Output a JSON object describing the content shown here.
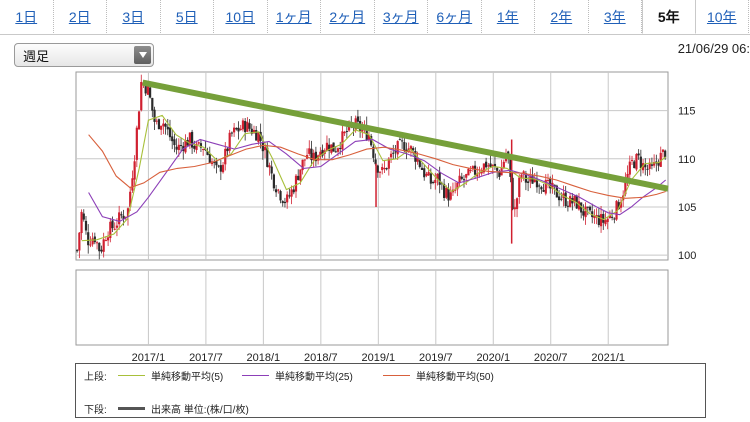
{
  "tabs": [
    {
      "label": "1日",
      "active": false
    },
    {
      "label": "2日",
      "active": false
    },
    {
      "label": "3日",
      "active": false
    },
    {
      "label": "5日",
      "active": false
    },
    {
      "label": "10日",
      "active": false
    },
    {
      "label": "1ヶ月",
      "active": false
    },
    {
      "label": "2ヶ月",
      "active": false
    },
    {
      "label": "3ヶ月",
      "active": false
    },
    {
      "label": "6ヶ月",
      "active": false
    },
    {
      "label": "1年",
      "active": false
    },
    {
      "label": "2年",
      "active": false
    },
    {
      "label": "3年",
      "active": false
    },
    {
      "label": "5年",
      "active": true
    },
    {
      "label": "10年",
      "active": false
    }
  ],
  "period_select": {
    "value": "週足"
  },
  "timestamp": "21/06/29 06:",
  "legend": {
    "upper_label": "上段:",
    "lower_label": "下段:",
    "ma5": "単純移動平均(5)",
    "ma25": "単純移動平均(25)",
    "ma50": "単純移動平均(50)",
    "volume": "出来高 単位:(株/口/枚)"
  },
  "colors": {
    "tab_link": "#2060b8",
    "ma5": "#a8c03a",
    "ma25": "#8c3fb8",
    "ma50": "#d8603c",
    "trendline": "#76a03a",
    "candle_up": "#d02030",
    "candle_down": "#2a2a2a",
    "grid": "#c8c8c8"
  },
  "chart_data": {
    "type": "candlestick",
    "interval": "weekly",
    "ylim": [
      99.5,
      119
    ],
    "y_ticks": [
      100,
      105,
      110,
      115
    ],
    "x_ticks": [
      "2017/1",
      "2017/7",
      "2018/1",
      "2018/7",
      "2019/1",
      "2019/7",
      "2020/1",
      "2020/7",
      "2021/1"
    ],
    "x_tick_positions": [
      2017.0,
      2017.5,
      2018.0,
      2018.5,
      2019.0,
      2019.5,
      2020.0,
      2020.5,
      2021.0
    ],
    "x_range": [
      2016.37,
      2021.52
    ],
    "price_path": [
      [
        2016.38,
        100.5
      ],
      [
        2016.42,
        104.5
      ],
      [
        2016.47,
        101.5
      ],
      [
        2016.53,
        102.0
      ],
      [
        2016.58,
        100.4
      ],
      [
        2016.64,
        102.5
      ],
      [
        2016.7,
        103.0
      ],
      [
        2016.76,
        104.0
      ],
      [
        2016.82,
        104.5
      ],
      [
        2016.88,
        110.5
      ],
      [
        2016.94,
        118.2
      ],
      [
        2017.0,
        117.0
      ],
      [
        2017.06,
        113.5
      ],
      [
        2017.12,
        114.0
      ],
      [
        2017.18,
        112.5
      ],
      [
        2017.24,
        111.0
      ],
      [
        2017.3,
        111.5
      ],
      [
        2017.36,
        112.0
      ],
      [
        2017.42,
        111.0
      ],
      [
        2017.48,
        111.3
      ],
      [
        2017.54,
        110.0
      ],
      [
        2017.6,
        108.5
      ],
      [
        2017.66,
        110.0
      ],
      [
        2017.72,
        112.5
      ],
      [
        2017.78,
        113.0
      ],
      [
        2017.84,
        113.5
      ],
      [
        2017.9,
        113.0
      ],
      [
        2017.96,
        112.5
      ],
      [
        2018.02,
        110.5
      ],
      [
        2018.08,
        108.0
      ],
      [
        2018.14,
        106.5
      ],
      [
        2018.2,
        105.5
      ],
      [
        2018.26,
        107.0
      ],
      [
        2018.32,
        109.0
      ],
      [
        2018.38,
        110.5
      ],
      [
        2018.44,
        110.0
      ],
      [
        2018.5,
        111.0
      ],
      [
        2018.56,
        111.5
      ],
      [
        2018.62,
        111.0
      ],
      [
        2018.68,
        112.0
      ],
      [
        2018.74,
        113.0
      ],
      [
        2018.8,
        113.5
      ],
      [
        2018.86,
        113.0
      ],
      [
        2018.92,
        112.5
      ],
      [
        2018.98,
        109.5
      ],
      [
        2019.04,
        108.5
      ],
      [
        2019.1,
        110.0
      ],
      [
        2019.16,
        111.0
      ],
      [
        2019.22,
        111.5
      ],
      [
        2019.28,
        111.0
      ],
      [
        2019.34,
        110.0
      ],
      [
        2019.4,
        108.5
      ],
      [
        2019.46,
        107.5
      ],
      [
        2019.52,
        108.0
      ],
      [
        2019.58,
        106.5
      ],
      [
        2019.64,
        106.0
      ],
      [
        2019.7,
        107.5
      ],
      [
        2019.76,
        108.0
      ],
      [
        2019.82,
        108.5
      ],
      [
        2019.88,
        109.0
      ],
      [
        2019.94,
        109.5
      ],
      [
        2020.0,
        109.0
      ],
      [
        2020.06,
        108.5
      ],
      [
        2020.12,
        111.0
      ],
      [
        2020.18,
        104.0
      ],
      [
        2020.24,
        108.5
      ],
      [
        2020.3,
        107.5
      ],
      [
        2020.36,
        108.0
      ],
      [
        2020.42,
        107.5
      ],
      [
        2020.48,
        107.0
      ],
      [
        2020.54,
        106.5
      ],
      [
        2020.6,
        106.0
      ],
      [
        2020.66,
        105.5
      ],
      [
        2020.72,
        105.5
      ],
      [
        2020.78,
        104.5
      ],
      [
        2020.84,
        104.0
      ],
      [
        2020.9,
        103.8
      ],
      [
        2020.96,
        103.5
      ],
      [
        2021.02,
        104.0
      ],
      [
        2021.08,
        105.0
      ],
      [
        2021.14,
        107.0
      ],
      [
        2021.2,
        109.5
      ],
      [
        2021.26,
        110.0
      ],
      [
        2021.32,
        109.0
      ],
      [
        2021.38,
        108.8
      ],
      [
        2021.44,
        110.0
      ],
      [
        2021.5,
        110.8
      ]
    ],
    "spikes": [
      {
        "x": 2018.98,
        "low": 105.0
      },
      {
        "x": 2020.16,
        "high": 112.0,
        "low": 101.2
      }
    ],
    "series": [
      {
        "name": "単純移動平均(5)",
        "values": [
          [
            2016.42,
            101.5
          ],
          [
            2016.55,
            101.6
          ],
          [
            2016.7,
            102.2
          ],
          [
            2016.82,
            103.8
          ],
          [
            2016.92,
            109.0
          ],
          [
            2017.0,
            114.0
          ],
          [
            2017.12,
            114.5
          ],
          [
            2017.24,
            112.5
          ],
          [
            2017.36,
            111.6
          ],
          [
            2017.48,
            111.2
          ],
          [
            2017.6,
            109.8
          ],
          [
            2017.72,
            110.5
          ],
          [
            2017.84,
            112.6
          ],
          [
            2017.96,
            112.8
          ],
          [
            2018.08,
            110.0
          ],
          [
            2018.2,
            106.8
          ],
          [
            2018.32,
            107.5
          ],
          [
            2018.44,
            109.8
          ],
          [
            2018.56,
            110.9
          ],
          [
            2018.68,
            111.5
          ],
          [
            2018.8,
            113.0
          ],
          [
            2018.92,
            112.5
          ],
          [
            2019.04,
            109.8
          ],
          [
            2019.16,
            110.0
          ],
          [
            2019.28,
            111.0
          ],
          [
            2019.4,
            109.4
          ],
          [
            2019.52,
            107.8
          ],
          [
            2019.64,
            106.6
          ],
          [
            2019.76,
            107.5
          ],
          [
            2019.88,
            108.6
          ],
          [
            2020.0,
            109.2
          ],
          [
            2020.12,
            109.0
          ],
          [
            2020.24,
            108.0
          ],
          [
            2020.36,
            107.9
          ],
          [
            2020.48,
            107.3
          ],
          [
            2020.6,
            106.2
          ],
          [
            2020.72,
            105.5
          ],
          [
            2020.84,
            104.3
          ],
          [
            2020.96,
            103.7
          ],
          [
            2021.08,
            104.6
          ],
          [
            2021.2,
            107.8
          ],
          [
            2021.32,
            109.5
          ],
          [
            2021.44,
            109.6
          ],
          [
            2021.5,
            110.2
          ]
        ]
      },
      {
        "name": "単純移動平均(25)",
        "values": [
          [
            2016.48,
            106.5
          ],
          [
            2016.6,
            104.0
          ],
          [
            2016.75,
            103.5
          ],
          [
            2016.9,
            104.5
          ],
          [
            2017.0,
            106.0
          ],
          [
            2017.15,
            108.5
          ],
          [
            2017.3,
            111.0
          ],
          [
            2017.45,
            112.0
          ],
          [
            2017.6,
            111.5
          ],
          [
            2017.75,
            111.0
          ],
          [
            2017.9,
            111.5
          ],
          [
            2018.05,
            111.8
          ],
          [
            2018.2,
            110.5
          ],
          [
            2018.35,
            109.0
          ],
          [
            2018.5,
            109.2
          ],
          [
            2018.65,
            110.5
          ],
          [
            2018.8,
            111.8
          ],
          [
            2018.95,
            112.0
          ],
          [
            2019.1,
            111.0
          ],
          [
            2019.25,
            110.5
          ],
          [
            2019.4,
            109.8
          ],
          [
            2019.55,
            108.5
          ],
          [
            2019.7,
            107.5
          ],
          [
            2019.85,
            108.0
          ],
          [
            2020.0,
            108.6
          ],
          [
            2020.15,
            108.8
          ],
          [
            2020.3,
            108.3
          ],
          [
            2020.45,
            107.6
          ],
          [
            2020.6,
            106.8
          ],
          [
            2020.75,
            106.0
          ],
          [
            2020.9,
            105.0
          ],
          [
            2021.0,
            104.4
          ],
          [
            2021.1,
            104.2
          ],
          [
            2021.2,
            105.0
          ],
          [
            2021.3,
            106.0
          ],
          [
            2021.42,
            107.0
          ],
          [
            2021.5,
            107.8
          ]
        ]
      },
      {
        "name": "単純移動平均(50)",
        "values": [
          [
            2016.48,
            112.5
          ],
          [
            2016.6,
            110.8
          ],
          [
            2016.72,
            108.2
          ],
          [
            2016.84,
            107.0
          ],
          [
            2016.96,
            107.5
          ],
          [
            2017.1,
            108.6
          ],
          [
            2017.25,
            109.0
          ],
          [
            2017.4,
            109.2
          ],
          [
            2017.55,
            109.6
          ],
          [
            2017.7,
            110.3
          ],
          [
            2017.85,
            111.0
          ],
          [
            2018.0,
            111.4
          ],
          [
            2018.15,
            111.2
          ],
          [
            2018.3,
            110.5
          ],
          [
            2018.45,
            109.9
          ],
          [
            2018.6,
            109.9
          ],
          [
            2018.75,
            110.4
          ],
          [
            2018.9,
            111.0
          ],
          [
            2019.05,
            111.2
          ],
          [
            2019.2,
            110.9
          ],
          [
            2019.35,
            110.5
          ],
          [
            2019.5,
            110.0
          ],
          [
            2019.65,
            109.4
          ],
          [
            2019.8,
            109.0
          ],
          [
            2019.95,
            108.7
          ],
          [
            2020.1,
            108.6
          ],
          [
            2020.25,
            108.5
          ],
          [
            2020.4,
            108.2
          ],
          [
            2020.55,
            107.8
          ],
          [
            2020.7,
            107.2
          ],
          [
            2020.85,
            106.6
          ],
          [
            2021.0,
            106.2
          ],
          [
            2021.15,
            105.9
          ],
          [
            2021.3,
            106.0
          ],
          [
            2021.42,
            106.3
          ],
          [
            2021.5,
            106.6
          ]
        ]
      }
    ],
    "trendline": [
      [
        2016.95,
        117.9
      ],
      [
        2021.52,
        106.9
      ]
    ]
  }
}
